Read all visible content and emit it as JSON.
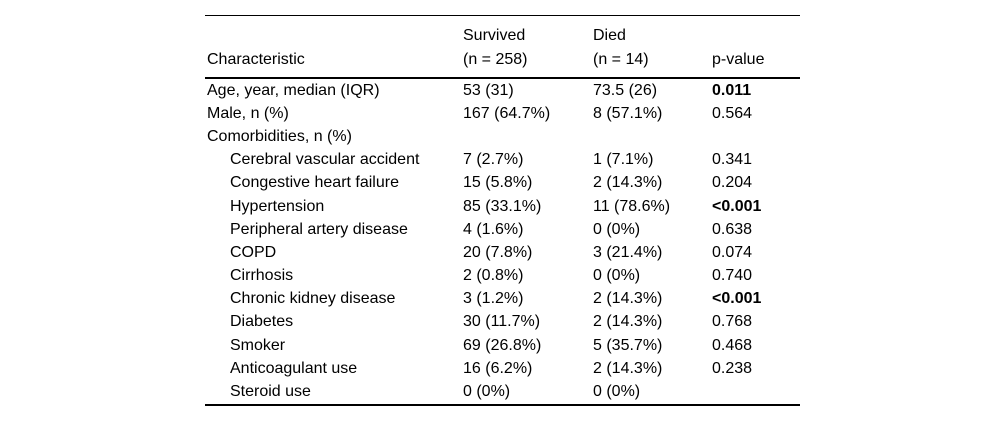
{
  "table": {
    "header": {
      "characteristic": "Characteristic",
      "survived_line1": "Survived",
      "survived_line2": "(n = 258)",
      "died_line1": "Died",
      "died_line2": "(n = 14)",
      "p_label": "p-value"
    },
    "rows": [
      {
        "label": "Age, year, median (IQR)",
        "indent": false,
        "survived": "53 (31)",
        "died": "73.5 (26)",
        "p": "0.011",
        "p_bold": true
      },
      {
        "label": "Male, n (%)",
        "indent": false,
        "survived": "167 (64.7%)",
        "died": "8 (57.1%)",
        "p": "0.564",
        "p_bold": false
      },
      {
        "label": "Comorbidities, n (%)",
        "indent": false,
        "survived": "",
        "died": "",
        "p": "",
        "p_bold": false
      },
      {
        "label": "Cerebral vascular accident",
        "indent": true,
        "survived": "7 (2.7%)",
        "died": "1 (7.1%)",
        "p": "0.341",
        "p_bold": false
      },
      {
        "label": "Congestive heart failure",
        "indent": true,
        "survived": "15 (5.8%)",
        "died": "2 (14.3%)",
        "p": "0.204",
        "p_bold": false
      },
      {
        "label": "Hypertension",
        "indent": true,
        "survived": "85 (33.1%)",
        "died": "11 (78.6%)",
        "p": "<0.001",
        "p_bold": true
      },
      {
        "label": "Peripheral artery disease",
        "indent": true,
        "survived": "4 (1.6%)",
        "died": "0 (0%)",
        "p": "0.638",
        "p_bold": false
      },
      {
        "label": "COPD",
        "indent": true,
        "survived": "20 (7.8%)",
        "died": "3 (21.4%)",
        "p": "0.074",
        "p_bold": false
      },
      {
        "label": "Cirrhosis",
        "indent": true,
        "survived": "2 (0.8%)",
        "died": "0 (0%)",
        "p": "0.740",
        "p_bold": false
      },
      {
        "label": "Chronic kidney disease",
        "indent": true,
        "survived": "3 (1.2%)",
        "died": "2 (14.3%)",
        "p": "<0.001",
        "p_bold": true
      },
      {
        "label": "Diabetes",
        "indent": true,
        "survived": "30 (11.7%)",
        "died": "2 (14.3%)",
        "p": "0.768",
        "p_bold": false
      },
      {
        "label": "Smoker",
        "indent": true,
        "survived": "69 (26.8%)",
        "died": "5 (35.7%)",
        "p": "0.468",
        "p_bold": false
      },
      {
        "label": "Anticoagulant use",
        "indent": true,
        "survived": "16 (6.2%)",
        "died": "2 (14.3%)",
        "p": "0.238",
        "p_bold": false
      },
      {
        "label": "Steroid use",
        "indent": true,
        "survived": "0 (0%)",
        "died": "0 (0%)",
        "p": "",
        "p_bold": false
      }
    ]
  }
}
